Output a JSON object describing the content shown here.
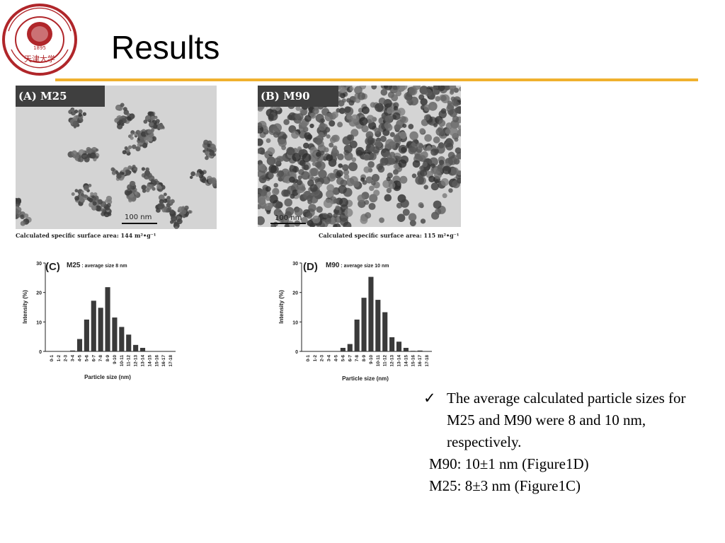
{
  "slide": {
    "title": "Results",
    "accent_color": "#f0b12e",
    "logo": {
      "text_outer": "TIANJIN UNIVERSITY (PEIYANG UNIVERSITY)",
      "year": "1895",
      "text_inner": "天津大学",
      "color": "#b0262a"
    }
  },
  "panels": {
    "a": {
      "label": "(A) M25",
      "scale": "100 nm",
      "caption": "Calculated  specific surface area: 144 m²•g⁻¹"
    },
    "b": {
      "label": "(B) M90",
      "scale": "100 nm",
      "caption": "Calculated  specific surface area: 115 m²•g⁻¹"
    }
  },
  "chart_data": [
    {
      "type": "bar",
      "panel": "(C)",
      "sample": "M25",
      "subtitle": " : average size 8 nm",
      "xlabel": "Particle size (nm)",
      "ylabel": "Intensity (%)",
      "ylim": [
        0,
        30
      ],
      "yticks": [
        0,
        10,
        20,
        30
      ],
      "categories": [
        "0-1",
        "1-2",
        "2-3",
        "3-4",
        "4-5",
        "5-6",
        "6-7",
        "7-8",
        "8-9",
        "9-10",
        "10-11",
        "11-12",
        "12-13",
        "13-14",
        "14-15",
        "15-16",
        "16-17",
        "17-18"
      ],
      "values": [
        0,
        0,
        0,
        0.3,
        4.2,
        10.8,
        17.2,
        14.8,
        21.8,
        11.5,
        8.3,
        5.7,
        2.2,
        1.2,
        0,
        0,
        0,
        0
      ]
    },
    {
      "type": "bar",
      "panel": "(D)",
      "sample": "M90",
      "subtitle": " : average size 10 nm",
      "xlabel": "Particle size (nm)",
      "ylabel": "Intensity (%)",
      "ylim": [
        0,
        30
      ],
      "yticks": [
        0,
        10,
        20,
        30
      ],
      "categories": [
        "0-1",
        "1-2",
        "2-3",
        "3-4",
        "4-5",
        "5-6",
        "6-7",
        "7-8",
        "8-9",
        "9-10",
        "10-11",
        "11-12",
        "12-13",
        "13-14",
        "14-15",
        "15-16",
        "16-17",
        "17-18"
      ],
      "values": [
        0,
        0,
        0,
        0,
        0,
        1.2,
        2.5,
        10.8,
        18.2,
        25.3,
        17.5,
        13.3,
        4.8,
        3.3,
        1.2,
        0.2,
        0.3,
        0
      ]
    }
  ],
  "text": {
    "check": "✓",
    "bullet": "The average calculated particle sizes for M25 and M90 were 8 and 10 nm, respectively.",
    "line1": "M90: 10±1 nm (Figure1D)",
    "line2": "M25:  8±3 nm (Figure1C)"
  }
}
